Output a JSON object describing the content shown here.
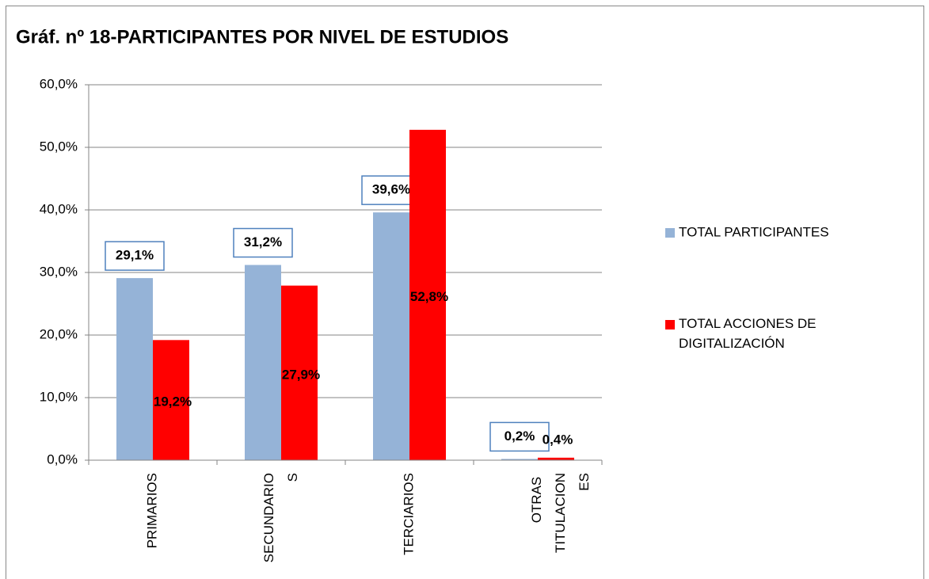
{
  "chart_data": {
    "type": "bar",
    "title": "Gráf. nº 18-PARTICIPANTES POR NIVEL DE ESTUDIOS",
    "categories": [
      "PRIMARIOS",
      "SECUNDARIOS",
      "TERCIARIOS",
      "OTRAS TITULACIONES"
    ],
    "series": [
      {
        "name": "TOTAL PARTICIPANTES",
        "color": "#95b3d7",
        "values": [
          29.1,
          31.2,
          39.6,
          0.2
        ],
        "value_labels": [
          "29,1%",
          "31,2%",
          "39,6%",
          "0,2%"
        ]
      },
      {
        "name": "TOTAL ACCIONES DE DIGITALIZACIÓN",
        "color": "#ff0000",
        "values": [
          19.2,
          27.9,
          52.8,
          0.4
        ],
        "value_labels": [
          "19,2%",
          "27,9%",
          "52,8%",
          "0,4%"
        ]
      }
    ],
    "ylim": [
      0,
      60
    ],
    "yticks": [
      {
        "value": 0,
        "label": "0,0%"
      },
      {
        "value": 10,
        "label": "10,0%"
      },
      {
        "value": 20,
        "label": "20,0%"
      },
      {
        "value": 30,
        "label": "30,0%"
      },
      {
        "value": 40,
        "label": "40,0%"
      },
      {
        "value": 50,
        "label": "50,0%"
      },
      {
        "value": 60,
        "label": "60,0%"
      }
    ],
    "grid": true,
    "legend": "right"
  }
}
